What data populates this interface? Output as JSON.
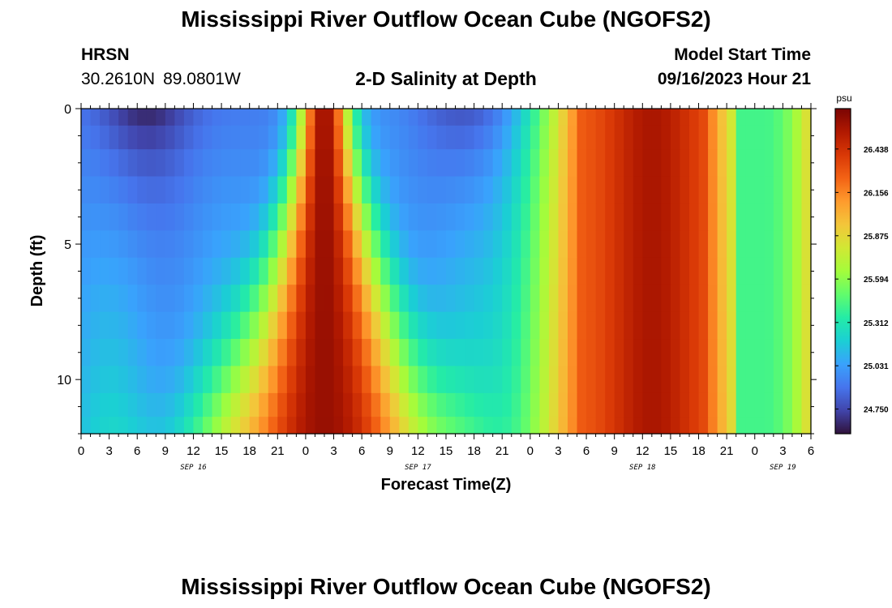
{
  "header": {
    "title": "Mississippi River Outflow Ocean Cube (NGOFS2)",
    "station": "HRSN",
    "lat": "30.2610N",
    "lon": "89.0801W",
    "subtitle": "2-D Salinity at Depth",
    "model_start_label": "Model Start Time",
    "model_start_value": "09/16/2023 Hour 21"
  },
  "footer": {
    "title": "Mississippi River Outflow Ocean Cube (NGOFS2)"
  },
  "colors": {
    "colormap": [
      "#30123b",
      "#4145ab",
      "#4675ed",
      "#39a2fc",
      "#1bcfd4",
      "#24eca6",
      "#61fc6c",
      "#a4fc3b",
      "#d1e834",
      "#f3c63a",
      "#fe9b2d",
      "#f36315",
      "#d93806",
      "#b11901",
      "#7a0403"
    ]
  },
  "chart_data": {
    "type": "heatmap",
    "xlabel": "Forecast Time(Z)",
    "ylabel": "Depth (ft)",
    "colorbar_unit": "psu",
    "colorbar_ticks": [
      24.75,
      25.031,
      25.312,
      25.594,
      25.875,
      26.156,
      26.438
    ],
    "colorbar_tick_labels": [
      "24.750",
      "25.031",
      "25.312",
      "25.594",
      "25.875",
      "26.156",
      "26.438"
    ],
    "vmin": 24.59,
    "vmax": 26.7,
    "x_range_hours": [
      0,
      78
    ],
    "x_ticks_hours": [
      0,
      3,
      6,
      9,
      12,
      15,
      18,
      21,
      24,
      27,
      30,
      33,
      36,
      39,
      42,
      45,
      48,
      51,
      54,
      57,
      60,
      63,
      66,
      69,
      72,
      75,
      78
    ],
    "x_tick_labels": [
      "0",
      "3",
      "6",
      "9",
      "12",
      "15",
      "18",
      "21",
      "0",
      "3",
      "6",
      "9",
      "12",
      "15",
      "18",
      "21",
      "0",
      "3",
      "6",
      "9",
      "12",
      "15",
      "18",
      "21",
      "0",
      "3",
      "6"
    ],
    "date_labels": [
      {
        "hour": 12,
        "text": "SEP 16"
      },
      {
        "hour": 36,
        "text": "SEP 17"
      },
      {
        "hour": 60,
        "text": "SEP 18"
      },
      {
        "hour": 75,
        "text": "SEP 19"
      }
    ],
    "y_range_ft": [
      0,
      12
    ],
    "y_ticks": [
      0,
      5,
      10
    ],
    "y_tick_labels": [
      "0",
      "5",
      "10"
    ],
    "depth_levels_ft": [
      0.25,
      1.0,
      2.0,
      3.0,
      4.0,
      5.0,
      6.0,
      7.0,
      8.0,
      9.0,
      10.0,
      11.0,
      11.75
    ],
    "time_step_hours": 1
  }
}
